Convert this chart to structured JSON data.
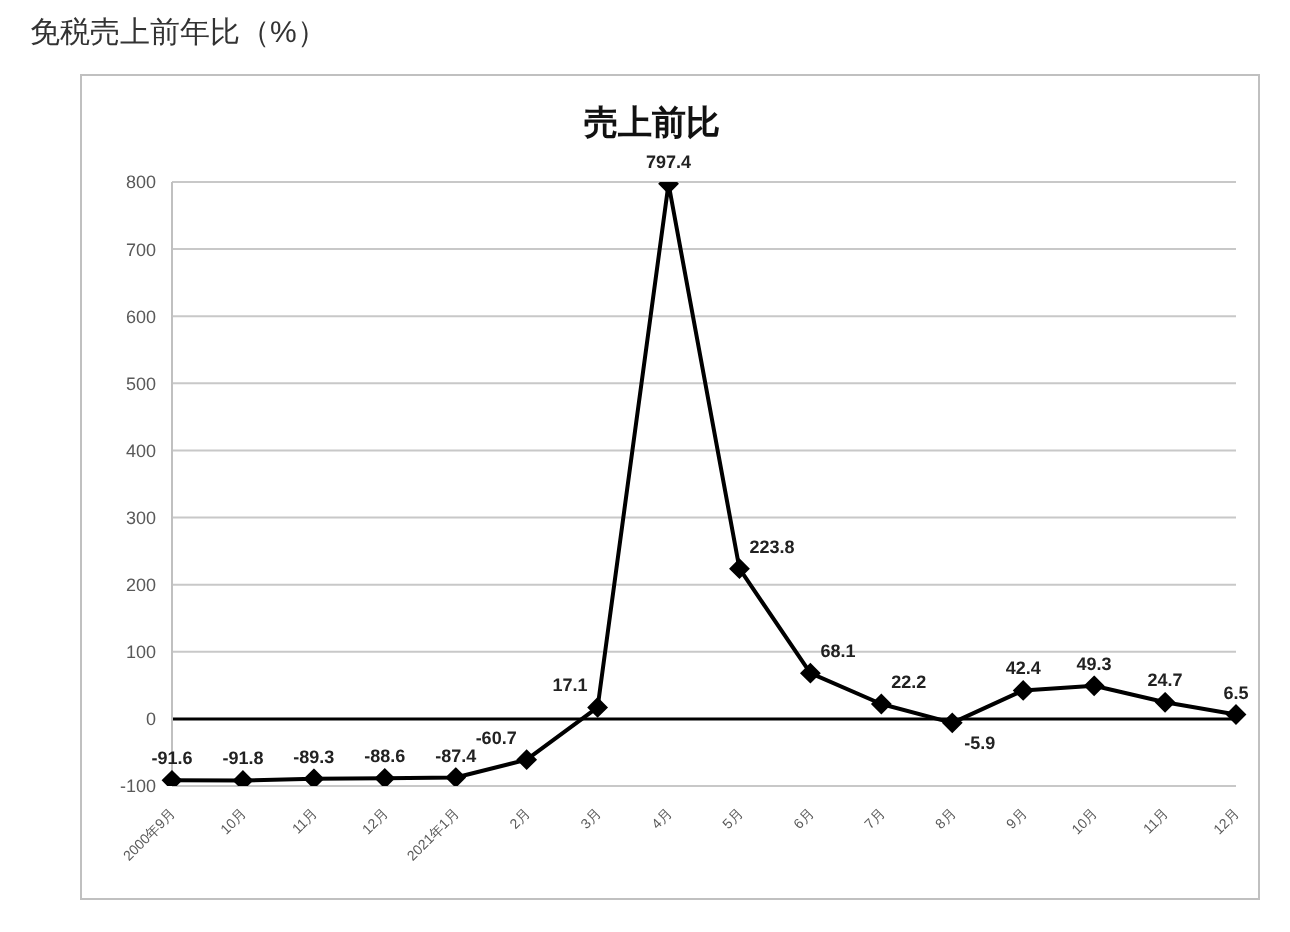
{
  "chart_data": {
    "type": "line",
    "title": "免税売上前年比（%）",
    "subtitle": "売上前比",
    "categories": [
      "2000年9月",
      "10月",
      "11月",
      "12月",
      "2021年1月",
      "2月",
      "3月",
      "4月",
      "5月",
      "6月",
      "7月",
      "8月",
      "9月",
      "10月",
      "11月",
      "12月"
    ],
    "series": [
      {
        "color": "#000000",
        "values": [
          -91.6,
          -91.8,
          -89.3,
          -88.6,
          -87.4,
          -60.7,
          17.1,
          797.4,
          223.8,
          68.1,
          22.2,
          -5.9,
          42.4,
          49.3,
          24.7,
          6.5
        ]
      }
    ],
    "ylim": [
      -100,
      800
    ],
    "yticks": [
      -100,
      0,
      100,
      200,
      300,
      400,
      500,
      600,
      700,
      800
    ],
    "grid": "y",
    "marker": "diamond",
    "line_style": "solid",
    "data_labels": true,
    "ref_lines": [
      {
        "axis": "y",
        "value": 0,
        "color": "#000000"
      }
    ]
  }
}
